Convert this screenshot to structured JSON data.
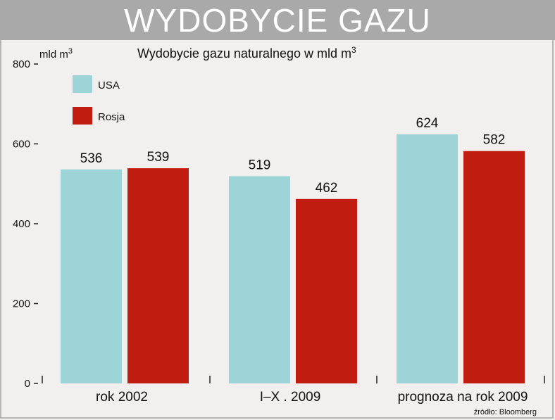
{
  "header": {
    "title": "WYDOBYCIE GAZU"
  },
  "chart_data": {
    "type": "bar",
    "title": "Wydobycie gazu naturalnego w mld m",
    "title_superscript": "3",
    "ylabel": "mld m",
    "ylabel_superscript": "3",
    "ylim": [
      0,
      800
    ],
    "yticks": [
      "0",
      "200",
      "400",
      "600",
      "800"
    ],
    "grid": false,
    "legend_position": "top-left",
    "categories": [
      "rok 2002",
      "I–X . 2009",
      "prognoza na  rok 2009"
    ],
    "series": [
      {
        "name": "USA",
        "color": "#9dd4d7",
        "values": [
          536,
          519,
          624
        ]
      },
      {
        "name": "Rosja",
        "color": "#c01c10",
        "values": [
          539,
          462,
          582
        ]
      }
    ],
    "source": "źródło: Bloomberg"
  }
}
